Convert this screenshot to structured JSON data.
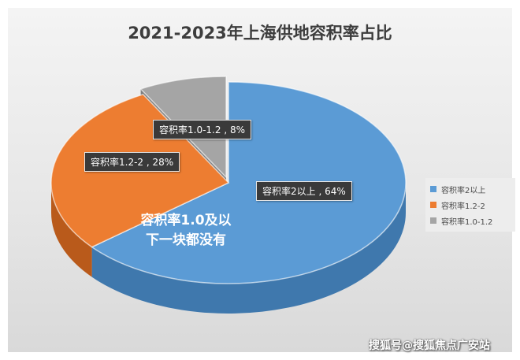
{
  "chart_data": {
    "type": "pie",
    "title": "2021-2023年上海供地容积率占比",
    "categories": [
      "容积率2以上",
      "容积率1.2-2",
      "容积率1.0-1.2"
    ],
    "values": [
      64,
      28,
      8
    ],
    "unit": "%",
    "data_labels": [
      "容积率2以上 , 64%",
      "容积率1.2-2 , 28%",
      "容积率1.0-1.2 , 8%"
    ],
    "legend_position": "right",
    "style": "3d-exploded",
    "annotations": [
      "容积率1.0及以",
      "下一块都没有"
    ]
  },
  "colors": {
    "series": [
      "#5b9bd5",
      "#ed7d31",
      "#a5a5a5"
    ],
    "series_side": [
      "#3f78ad",
      "#b95a1b",
      "#7f7f7f"
    ]
  },
  "watermark": "搜狐号@搜狐焦点广安站"
}
